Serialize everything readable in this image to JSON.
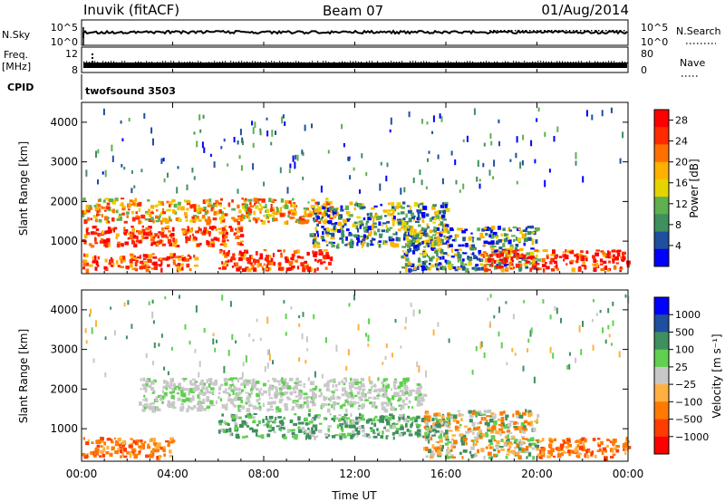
{
  "header": {
    "station": "Inuvik (fitACF)",
    "beam": "Beam 07",
    "date": "01/Aug/2014"
  },
  "top_panels": {
    "nsky_label": "N.Sky",
    "nsky_ticks": [
      "10^5",
      "10^0"
    ],
    "nsearch_label": "N.Search",
    "nsearch_ticks": [
      "10^5",
      "10^0"
    ],
    "freq_label_line1": "Freq.",
    "freq_label_line2": "[MHz]",
    "freq_ticks": [
      "12",
      "8"
    ],
    "nave_label": "Nave",
    "nave_ticks": [
      "80",
      "0"
    ],
    "cpid_label": "CPID",
    "cpid_text": "twofsound 3503"
  },
  "colors": {
    "power_scale": [
      "#0000ff",
      "#1f4f9e",
      "#3f8f5f",
      "#5fb04f",
      "#e6d400",
      "#ffb000",
      "#ff7000",
      "#ff2a00",
      "#ff0000"
    ],
    "velocity_scale": [
      "#ff0000",
      "#ff3c00",
      "#ff7a00",
      "#ffb040",
      "#c8c8c8",
      "#5fd04f",
      "#3f8f5f",
      "#1f4f9e",
      "#0000ff"
    ]
  },
  "chart_data": [
    {
      "type": "heatmap",
      "title": "",
      "xlabel": "Time UT",
      "ylabel": "Slant Range [km]",
      "x_ticks": [
        "00:00",
        "04:00",
        "08:00",
        "12:00",
        "16:00",
        "20:00",
        "00:00"
      ],
      "y_ticks": [
        "1000",
        "2000",
        "3000",
        "4000"
      ],
      "xlim_hours": [
        0,
        24
      ],
      "ylim_km": [
        180,
        4500
      ],
      "colorbar_label": "Power [dB]",
      "colorbar_ticks": [
        "4",
        "8",
        "12",
        "16",
        "20",
        "24",
        "28"
      ],
      "colorbar_range": [
        0,
        30
      ],
      "scatter_regions": [
        {
          "t0": 0.0,
          "t1": 5.0,
          "r0": 300,
          "r1": 700,
          "level": "high"
        },
        {
          "t0": 0.0,
          "t1": 7.0,
          "r0": 900,
          "r1": 1400,
          "level": "high"
        },
        {
          "t0": 0.0,
          "t1": 11.0,
          "r0": 1500,
          "r1": 2100,
          "level": "medium-high"
        },
        {
          "t0": 6.0,
          "t1": 11.0,
          "r0": 300,
          "r1": 800,
          "level": "high"
        },
        {
          "t0": 10.0,
          "t1": 16.0,
          "r0": 900,
          "r1": 2000,
          "level": "medium"
        },
        {
          "t0": 14.0,
          "t1": 20.0,
          "r0": 300,
          "r1": 1400,
          "level": "medium"
        },
        {
          "t0": 17.5,
          "t1": 24.0,
          "r0": 300,
          "r1": 800,
          "level": "high"
        }
      ]
    },
    {
      "type": "heatmap",
      "title": "",
      "xlabel": "Time UT",
      "ylabel": "Slant Range [km]",
      "x_ticks": [
        "00:00",
        "04:00",
        "08:00",
        "12:00",
        "16:00",
        "20:00",
        "00:00"
      ],
      "y_ticks": [
        "1000",
        "2000",
        "3000",
        "4000"
      ],
      "xlim_hours": [
        0,
        24
      ],
      "ylim_km": [
        180,
        4500
      ],
      "colorbar_label": "Velocity [m s⁻¹]",
      "colorbar_ticks": [
        "1000",
        "500",
        "100",
        "25",
        "−25",
        "−100",
        "−500",
        "−1000"
      ],
      "scatter_regions": [
        {
          "t0": 0.0,
          "t1": 4.0,
          "r0": 300,
          "r1": 800,
          "level": "-500"
        },
        {
          "t0": 2.5,
          "t1": 15.0,
          "r0": 1500,
          "r1": 2300,
          "level": "0"
        },
        {
          "t0": 6.0,
          "t1": 16.0,
          "r0": 800,
          "r1": 1400,
          "level": "100"
        },
        {
          "t0": 15.0,
          "t1": 20.0,
          "r0": 300,
          "r1": 1500,
          "level": "mixed"
        },
        {
          "t0": 20.0,
          "t1": 24.0,
          "r0": 300,
          "r1": 800,
          "level": "-500"
        }
      ]
    }
  ]
}
